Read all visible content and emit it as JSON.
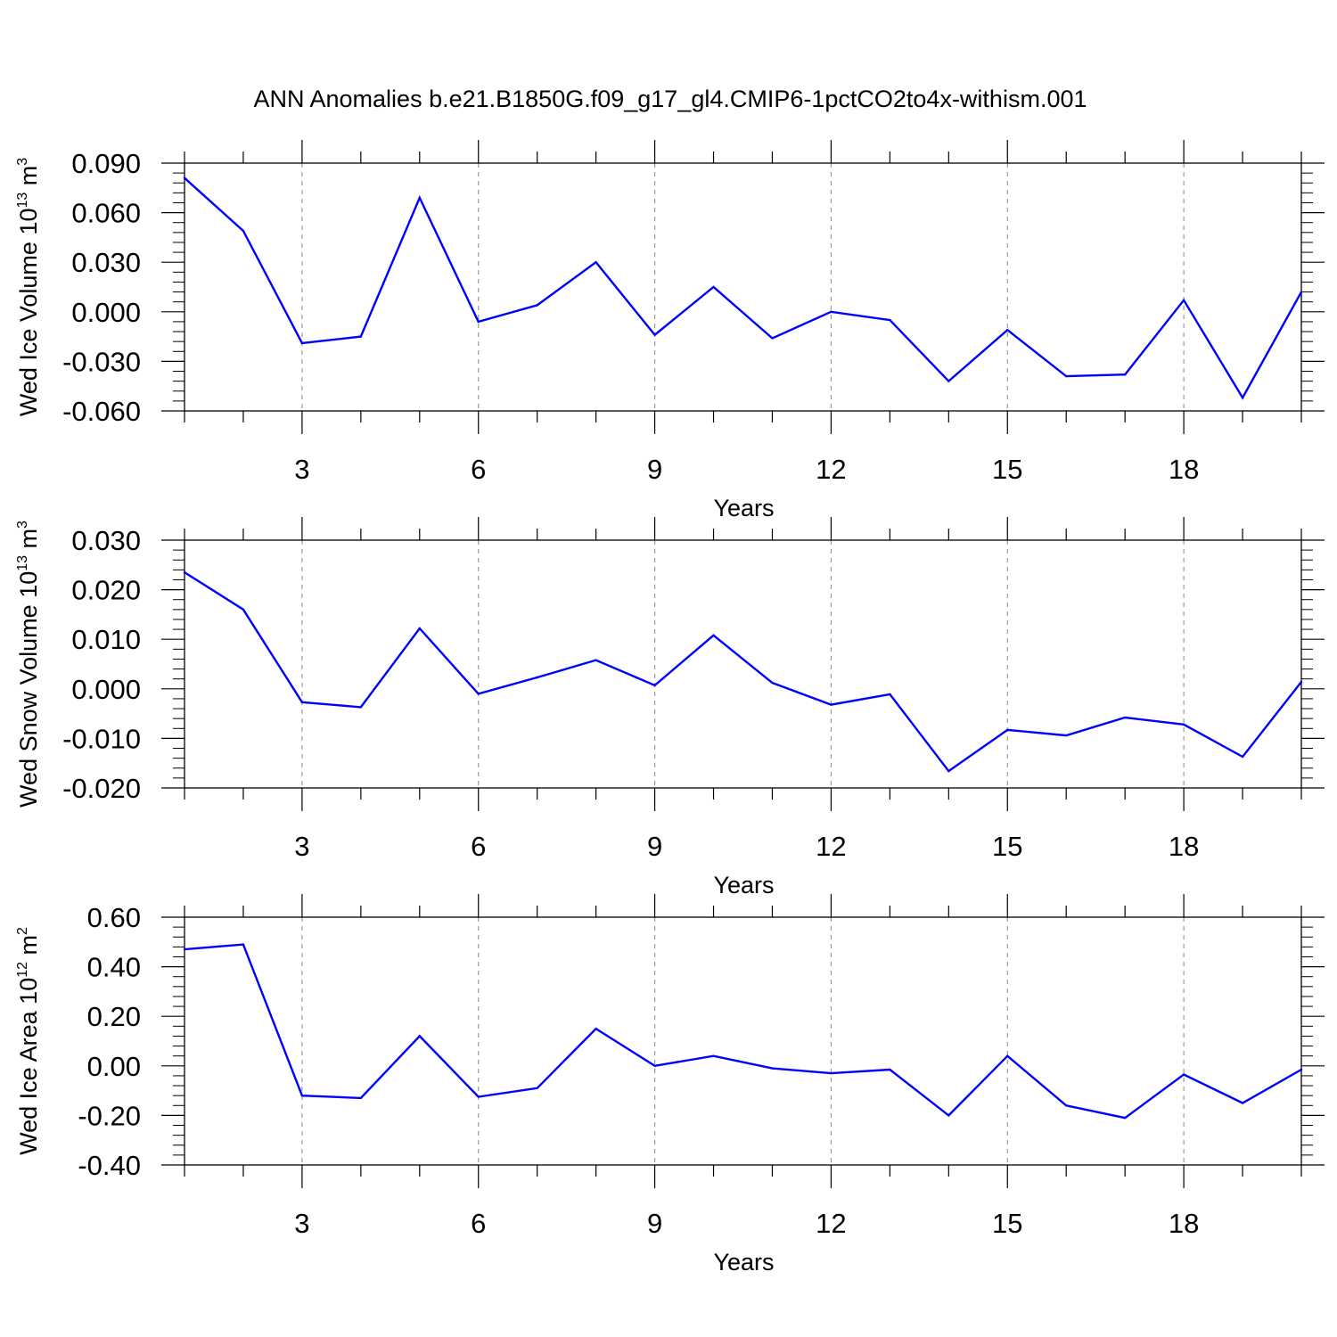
{
  "title": "ANN Anomalies b.e21.B1850G.f09_g17_gl4.CMIP6-1pctCO2to4x-withism.001",
  "colors": {
    "line": "#0000ff",
    "axis": "#000000",
    "grid": "#999999"
  },
  "chart_data": [
    {
      "type": "line",
      "xlabel": "Years",
      "ylabel": {
        "prefix": "Wed Ice Volume 10",
        "exp1": "13",
        "mid": " m",
        "exp2": "3"
      },
      "xlim": [
        1,
        20
      ],
      "ylim": [
        -0.06,
        0.09
      ],
      "xticks": [
        3,
        6,
        9,
        12,
        15,
        18
      ],
      "xtick_labels": [
        "3",
        "6",
        "9",
        "12",
        "15",
        "18"
      ],
      "yticks": [
        -0.06,
        -0.03,
        0.0,
        0.03,
        0.06,
        0.09
      ],
      "ytick_labels": [
        "-0.060",
        "-0.030",
        "0.000",
        "0.030",
        "0.060",
        "0.090"
      ],
      "grid": "vertical dashed at major x ticks",
      "x": [
        1,
        2,
        3,
        4,
        5,
        6,
        7,
        8,
        9,
        10,
        11,
        12,
        13,
        14,
        15,
        16,
        17,
        18,
        19,
        20
      ],
      "values": [
        0.081,
        0.049,
        -0.019,
        -0.015,
        0.069,
        -0.006,
        0.004,
        0.03,
        -0.014,
        0.015,
        -0.016,
        0.0,
        -0.005,
        -0.042,
        -0.011,
        -0.039,
        -0.038,
        0.007,
        -0.052,
        0.012
      ]
    },
    {
      "type": "line",
      "xlabel": "Years",
      "ylabel": {
        "prefix": "Wed Snow Volume 10",
        "exp1": "13",
        "mid": " m",
        "exp2": "3"
      },
      "xlim": [
        1,
        20
      ],
      "ylim": [
        -0.02,
        0.03
      ],
      "xticks": [
        3,
        6,
        9,
        12,
        15,
        18
      ],
      "xtick_labels": [
        "3",
        "6",
        "9",
        "12",
        "15",
        "18"
      ],
      "yticks": [
        -0.02,
        -0.01,
        0.0,
        0.01,
        0.02,
        0.03
      ],
      "ytick_labels": [
        "-0.020",
        "-0.010",
        "0.000",
        "0.010",
        "0.020",
        "0.030"
      ],
      "grid": "vertical dashed at major x ticks",
      "x": [
        1,
        2,
        3,
        4,
        5,
        6,
        7,
        8,
        9,
        10,
        11,
        12,
        13,
        14,
        15,
        16,
        17,
        18,
        19,
        20
      ],
      "values": [
        0.0235,
        0.016,
        -0.0027,
        -0.0037,
        0.0122,
        -0.001,
        0.0023,
        0.0058,
        0.0007,
        0.0108,
        0.0012,
        -0.0032,
        -0.0011,
        -0.0166,
        -0.0083,
        -0.0094,
        -0.0058,
        -0.0072,
        -0.0137,
        0.0014
      ]
    },
    {
      "type": "line",
      "xlabel": "Years",
      "ylabel": {
        "prefix": "Wed Ice Area 10",
        "exp1": "12",
        "mid": " m",
        "exp2": "2"
      },
      "xlim": [
        1,
        20
      ],
      "ylim": [
        -0.4,
        0.6
      ],
      "xticks": [
        3,
        6,
        9,
        12,
        15,
        18
      ],
      "xtick_labels": [
        "3",
        "6",
        "9",
        "12",
        "15",
        "18"
      ],
      "yticks": [
        -0.4,
        -0.2,
        0.0,
        0.2,
        0.4,
        0.6
      ],
      "ytick_labels": [
        "-0.40",
        "-0.20",
        "0.00",
        "0.20",
        "0.40",
        "0.60"
      ],
      "grid": "vertical dashed at major x ticks",
      "x": [
        1,
        2,
        3,
        4,
        5,
        6,
        7,
        8,
        9,
        10,
        11,
        12,
        13,
        14,
        15,
        16,
        17,
        18,
        19,
        20
      ],
      "values": [
        0.47,
        0.49,
        -0.12,
        -0.13,
        0.12,
        -0.125,
        -0.09,
        0.15,
        0.0,
        0.04,
        -0.01,
        -0.03,
        -0.015,
        -0.2,
        0.04,
        -0.16,
        -0.21,
        -0.035,
        -0.15,
        -0.015
      ]
    }
  ]
}
